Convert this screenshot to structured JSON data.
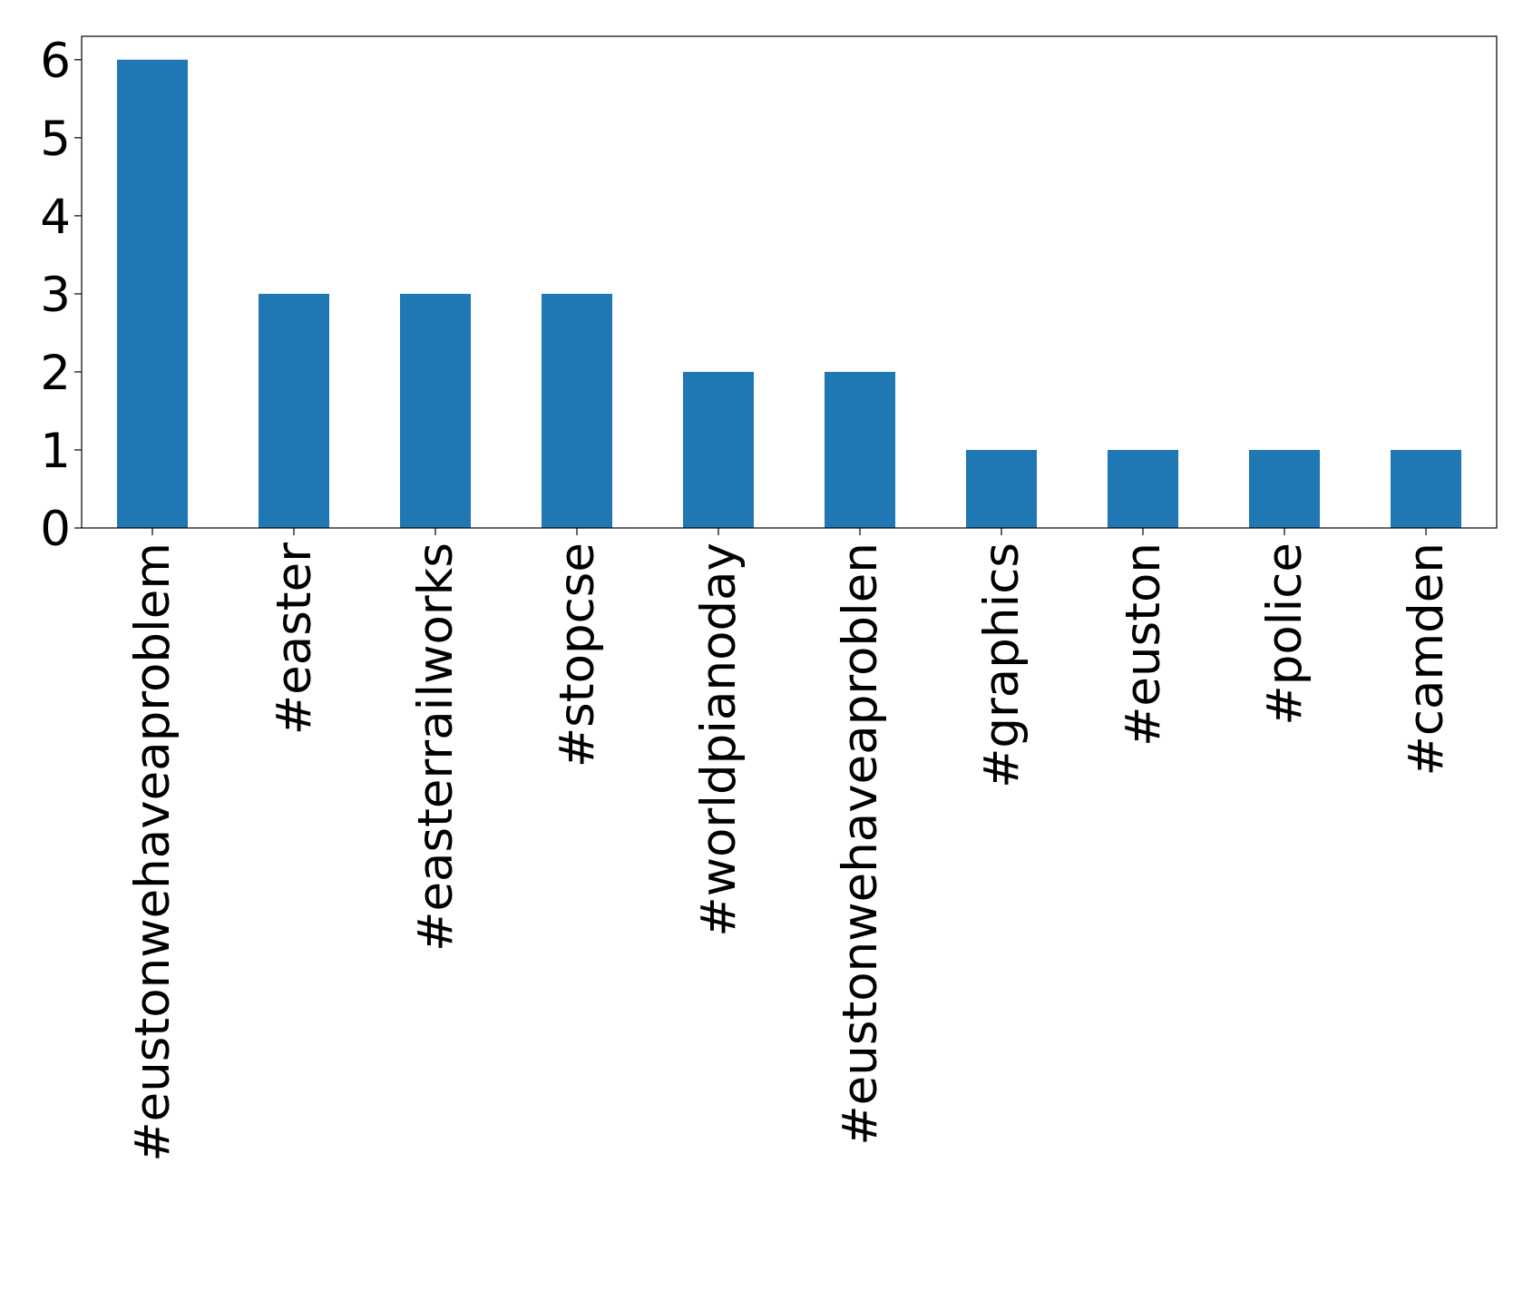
{
  "chart_data": {
    "type": "bar",
    "title": "",
    "xlabel": "",
    "ylabel": "",
    "categories": [
      "#eustonwehaveaproblem",
      "#easter",
      "#easterrailworks",
      "#stopcse",
      "#worldpianoday",
      "#eustonwehaveaproblen",
      "#graphics",
      "#euston",
      "#police",
      "#camden"
    ],
    "values": [
      6,
      3,
      3,
      3,
      2,
      2,
      1,
      1,
      1,
      1
    ],
    "ylim": [
      0,
      6.3
    ],
    "yticks": [
      0,
      1,
      2,
      3,
      4,
      5,
      6
    ],
    "grid": false,
    "bar_color": "#1f77b4"
  }
}
